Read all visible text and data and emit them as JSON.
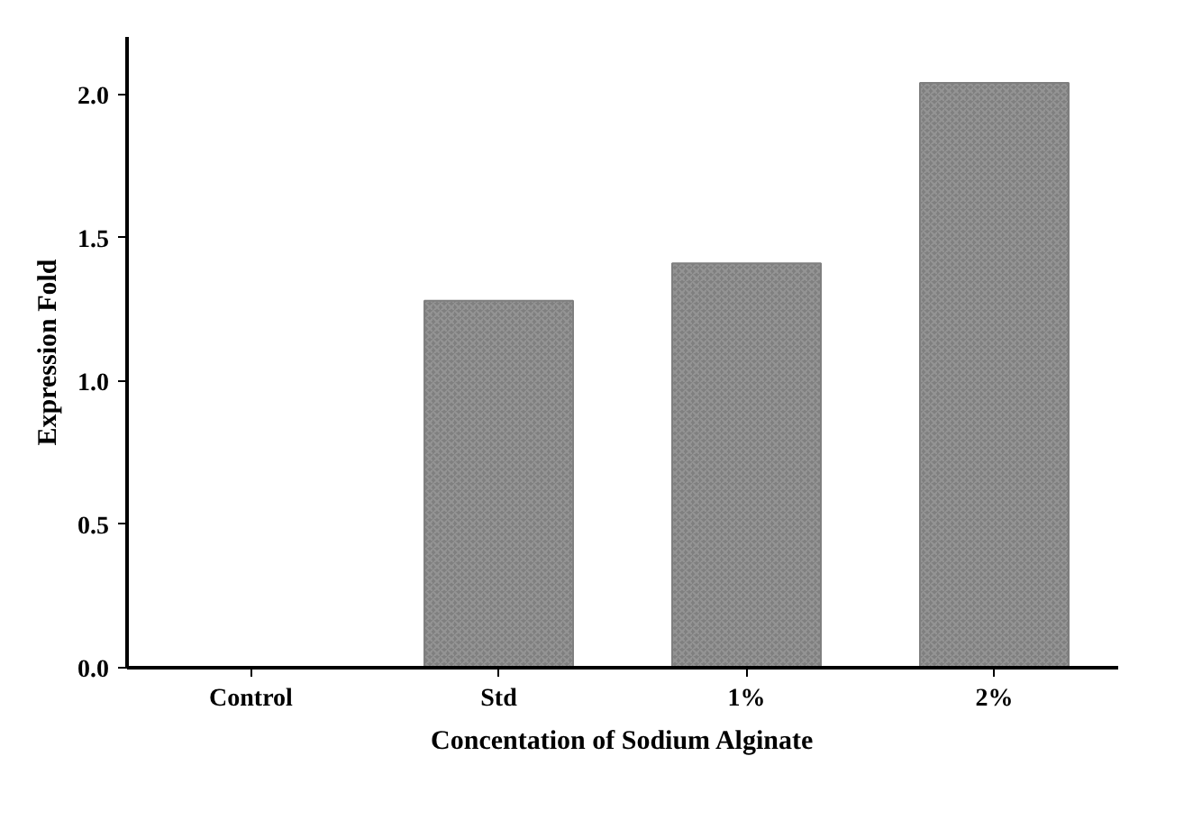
{
  "chart_data": {
    "type": "bar",
    "xlabel": "Concentation of Sodium Alginate",
    "ylabel": "Expression Fold",
    "categories": [
      "Control",
      "Std",
      "1%",
      "2%"
    ],
    "values": [
      0,
      1.28,
      1.41,
      2.04
    ],
    "color": "#7f7f7f",
    "ylim": [
      0,
      2.2
    ],
    "yticks": [
      {
        "value": 0,
        "label": "0.0"
      },
      {
        "value": 0.5,
        "label": "0.5"
      },
      {
        "value": 1,
        "label": "1.0"
      },
      {
        "value": 1.5,
        "label": "1.5"
      },
      {
        "value": 2,
        "label": "2.0"
      }
    ],
    "grid": false
  }
}
